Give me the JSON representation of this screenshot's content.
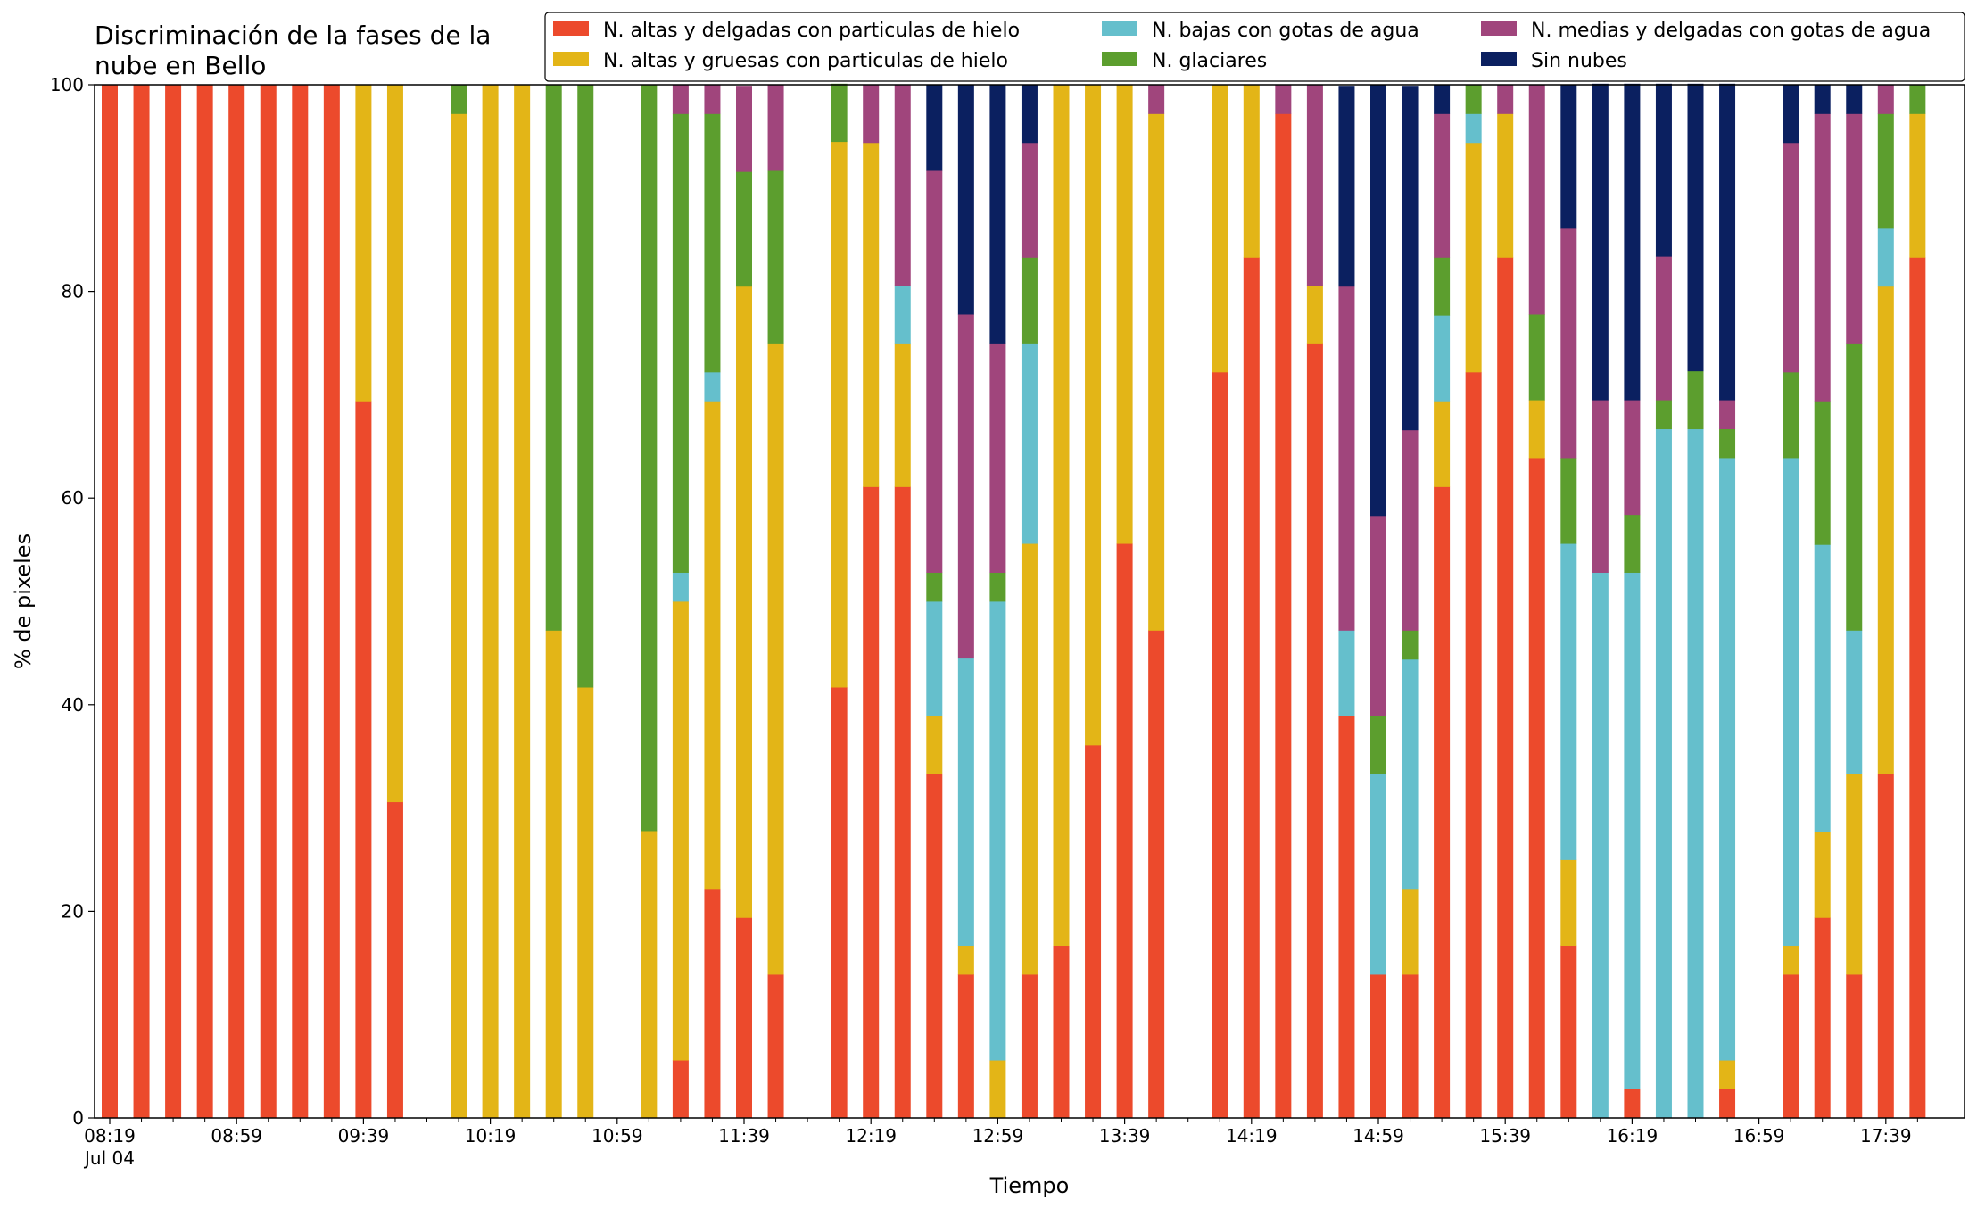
{
  "chart_data": {
    "type": "bar",
    "stacked": true,
    "title_lines": [
      "Discriminación de la fases de la",
      "nube en Bello"
    ],
    "xlabel": "Tiempo",
    "ylabel": "% de pixeles",
    "ylim": [
      0,
      100
    ],
    "yticks": [
      "0",
      "20",
      "40",
      "60",
      "80",
      "100"
    ],
    "xticks": [
      {
        "slot": 0,
        "label": "08:19",
        "sublabel": "Jul 04"
      },
      {
        "slot": 4,
        "label": "08:59"
      },
      {
        "slot": 8,
        "label": "09:39"
      },
      {
        "slot": 12,
        "label": "10:19"
      },
      {
        "slot": 16,
        "label": "10:59"
      },
      {
        "slot": 20,
        "label": "11:39"
      },
      {
        "slot": 24,
        "label": "12:19"
      },
      {
        "slot": 28,
        "label": "12:59"
      },
      {
        "slot": 32,
        "label": "13:39"
      },
      {
        "slot": 36,
        "label": "14:19"
      },
      {
        "slot": 40,
        "label": "14:59"
      },
      {
        "slot": 44,
        "label": "15:39"
      },
      {
        "slot": 48,
        "label": "16:19"
      },
      {
        "slot": 52,
        "label": "16:59"
      },
      {
        "slot": 56,
        "label": "17:39"
      }
    ],
    "grid": false,
    "legend_position": "top-right",
    "series": [
      {
        "name": "N. altas y delgadas con particulas de hielo",
        "color": "#ec4a2c"
      },
      {
        "name": "N. altas y gruesas con particulas de hielo",
        "color": "#e3b517"
      },
      {
        "name": "N. bajas con gotas de agua",
        "color": "#65bfcc"
      },
      {
        "name": "N. glaciares",
        "color": "#5c9e2e"
      },
      {
        "name": "N. medias y delgadas con gotas de agua",
        "color": "#a0457c"
      },
      {
        "name": "Sin nubes",
        "color": "#0b2060"
      }
    ],
    "slots": 58,
    "bars": [
      {
        "slot": 0,
        "values": [
          100,
          0,
          0,
          0,
          0,
          0
        ]
      },
      {
        "slot": 1,
        "values": [
          100,
          0,
          0,
          0,
          0,
          0
        ]
      },
      {
        "slot": 2,
        "values": [
          100,
          0,
          0,
          0,
          0,
          0
        ]
      },
      {
        "slot": 3,
        "values": [
          100,
          0,
          0,
          0,
          0,
          0
        ]
      },
      {
        "slot": 4,
        "values": [
          100,
          0,
          0,
          0,
          0,
          0
        ]
      },
      {
        "slot": 5,
        "values": [
          100,
          0,
          0,
          0,
          0,
          0
        ]
      },
      {
        "slot": 6,
        "values": [
          100,
          0,
          0,
          0,
          0,
          0
        ]
      },
      {
        "slot": 7,
        "values": [
          100,
          0,
          0,
          0,
          0,
          0
        ]
      },
      {
        "slot": 8,
        "values": [
          69.4,
          30.6,
          0,
          0,
          0,
          0
        ]
      },
      {
        "slot": 9,
        "values": [
          30.6,
          69.4,
          0,
          0,
          0,
          0
        ]
      },
      {
        "slot": 11,
        "values": [
          0,
          97.2,
          0,
          2.8,
          0,
          0
        ]
      },
      {
        "slot": 12,
        "values": [
          0,
          100,
          0,
          0,
          0,
          0
        ]
      },
      {
        "slot": 13,
        "values": [
          0,
          100,
          0,
          0,
          0,
          0
        ]
      },
      {
        "slot": 14,
        "values": [
          0,
          47.2,
          0,
          52.8,
          0,
          0
        ]
      },
      {
        "slot": 15,
        "values": [
          0,
          41.7,
          0,
          58.3,
          0,
          0
        ]
      },
      {
        "slot": 17,
        "values": [
          0,
          27.8,
          0,
          72.2,
          0,
          0
        ]
      },
      {
        "slot": 18,
        "values": [
          5.6,
          44.4,
          2.8,
          44.4,
          2.8,
          0
        ]
      },
      {
        "slot": 19,
        "values": [
          22.2,
          47.2,
          2.8,
          25.0,
          2.8,
          0
        ]
      },
      {
        "slot": 20,
        "values": [
          19.4,
          61.1,
          0,
          11.1,
          8.3,
          0
        ]
      },
      {
        "slot": 21,
        "values": [
          13.9,
          61.1,
          0,
          16.7,
          8.3,
          0
        ]
      },
      {
        "slot": 23,
        "values": [
          41.7,
          52.8,
          0,
          5.6,
          0,
          0
        ]
      },
      {
        "slot": 24,
        "values": [
          61.1,
          33.3,
          0,
          0,
          5.6,
          0
        ]
      },
      {
        "slot": 25,
        "values": [
          61.1,
          13.9,
          5.6,
          0,
          19.4,
          0
        ]
      },
      {
        "slot": 26,
        "values": [
          33.3,
          5.6,
          11.1,
          2.8,
          38.9,
          8.3
        ]
      },
      {
        "slot": 27,
        "values": [
          13.9,
          2.8,
          27.8,
          0,
          33.3,
          22.2
        ]
      },
      {
        "slot": 28,
        "values": [
          0,
          5.6,
          44.4,
          2.8,
          22.2,
          25.0
        ]
      },
      {
        "slot": 29,
        "values": [
          13.9,
          41.7,
          19.4,
          8.3,
          11.1,
          5.6
        ]
      },
      {
        "slot": 30,
        "values": [
          16.7,
          83.3,
          0,
          0,
          0,
          0
        ]
      },
      {
        "slot": 31,
        "values": [
          36.1,
          63.9,
          0,
          0,
          0,
          0
        ]
      },
      {
        "slot": 32,
        "values": [
          55.6,
          44.4,
          0,
          0,
          0,
          0
        ]
      },
      {
        "slot": 33,
        "values": [
          47.2,
          50.0,
          0,
          0,
          2.8,
          0
        ]
      },
      {
        "slot": 35,
        "values": [
          72.2,
          27.8,
          0,
          0,
          0,
          0
        ]
      },
      {
        "slot": 36,
        "values": [
          83.3,
          16.7,
          0,
          0,
          0,
          0
        ]
      },
      {
        "slot": 37,
        "values": [
          97.2,
          0,
          0,
          0,
          2.8,
          0
        ]
      },
      {
        "slot": 38,
        "values": [
          75.0,
          5.6,
          0,
          0,
          19.4,
          0
        ]
      },
      {
        "slot": 39,
        "values": [
          38.9,
          0,
          8.3,
          0,
          33.3,
          19.4
        ]
      },
      {
        "slot": 40,
        "values": [
          13.9,
          0,
          19.4,
          5.6,
          19.4,
          41.7
        ]
      },
      {
        "slot": 41,
        "values": [
          13.9,
          8.3,
          22.2,
          2.8,
          19.4,
          33.3
        ]
      },
      {
        "slot": 42,
        "values": [
          61.1,
          8.3,
          8.3,
          5.6,
          13.9,
          2.8
        ]
      },
      {
        "slot": 43,
        "values": [
          72.2,
          22.2,
          2.8,
          2.8,
          0,
          0
        ]
      },
      {
        "slot": 44,
        "values": [
          83.3,
          13.9,
          0,
          0,
          2.8,
          0
        ]
      },
      {
        "slot": 45,
        "values": [
          63.9,
          5.6,
          0,
          8.3,
          22.2,
          0
        ]
      },
      {
        "slot": 46,
        "values": [
          16.7,
          8.3,
          30.6,
          8.3,
          22.2,
          13.9
        ]
      },
      {
        "slot": 47,
        "values": [
          0,
          0,
          52.8,
          0,
          16.7,
          30.6
        ]
      },
      {
        "slot": 48,
        "values": [
          2.8,
          0,
          50.0,
          5.6,
          11.1,
          30.6
        ]
      },
      {
        "slot": 49,
        "values": [
          0,
          0,
          66.7,
          2.8,
          13.9,
          16.7
        ]
      },
      {
        "slot": 50,
        "values": [
          0,
          0,
          66.7,
          5.6,
          0,
          27.8
        ]
      },
      {
        "slot": 51,
        "values": [
          2.8,
          2.8,
          58.3,
          2.8,
          2.8,
          30.6
        ]
      },
      {
        "slot": 53,
        "values": [
          13.9,
          2.8,
          47.2,
          8.3,
          22.2,
          5.6
        ]
      },
      {
        "slot": 54,
        "values": [
          19.4,
          8.3,
          27.8,
          13.9,
          27.8,
          2.8
        ]
      },
      {
        "slot": 55,
        "values": [
          13.9,
          19.4,
          13.9,
          27.8,
          22.2,
          2.8
        ]
      },
      {
        "slot": 56,
        "values": [
          33.3,
          47.2,
          5.6,
          11.1,
          2.8,
          0
        ]
      },
      {
        "slot": 57,
        "values": [
          83.3,
          13.9,
          0,
          2.8,
          0,
          0
        ]
      }
    ]
  }
}
